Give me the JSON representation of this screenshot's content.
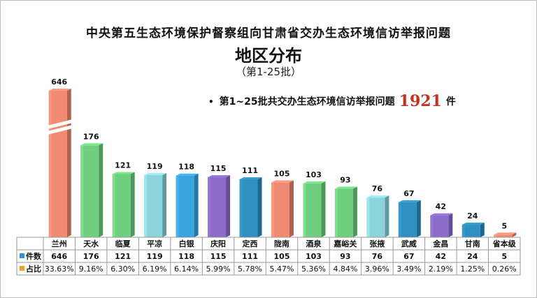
{
  "header": {
    "title": "中央第五生态环境保护督察组向甘肃省交办生态环境信访举报问题",
    "subtitle": "地区分布",
    "batch": "（第1-25批）"
  },
  "note": {
    "bullet": "•",
    "prefix": "第1~25批共交办生态环境信访举报问题",
    "total": "1921",
    "unit": "件"
  },
  "colors": {
    "salmon": "#f08a72",
    "green": "#6fcf7f",
    "cyan": "#8bd4dc",
    "blue": "#3aa4df",
    "purple": "#8b6cc6",
    "teal": "#2f8fbe",
    "legend_count": "#3a8fcf",
    "legend_share": "#f0a030"
  },
  "chart_data": {
    "type": "bar",
    "categories": [
      "兰州",
      "天水",
      "临夏",
      "平凉",
      "白银",
      "庆阳",
      "定西",
      "陇南",
      "酒泉",
      "嘉峪关",
      "张掖",
      "武威",
      "金昌",
      "甘南",
      "省本级"
    ],
    "series": [
      {
        "name": "件数",
        "values": [
          646,
          176,
          121,
          119,
          118,
          115,
          111,
          105,
          103,
          93,
          76,
          67,
          42,
          24,
          5
        ]
      },
      {
        "name": "占比",
        "values": [
          "33.63%",
          "9.16%",
          "6.30%",
          "6.19%",
          "6.14%",
          "5.99%",
          "5.78%",
          "5.47%",
          "5.36%",
          "4.84%",
          "3.96%",
          "3.49%",
          "2.19%",
          "1.25%",
          "0.26%"
        ]
      }
    ],
    "bar_colors": [
      "salmon",
      "green",
      "green",
      "cyan",
      "blue",
      "purple",
      "teal",
      "salmon",
      "green",
      "green",
      "cyan",
      "teal",
      "purple",
      "teal",
      "salmon"
    ],
    "axis_break": true
  }
}
